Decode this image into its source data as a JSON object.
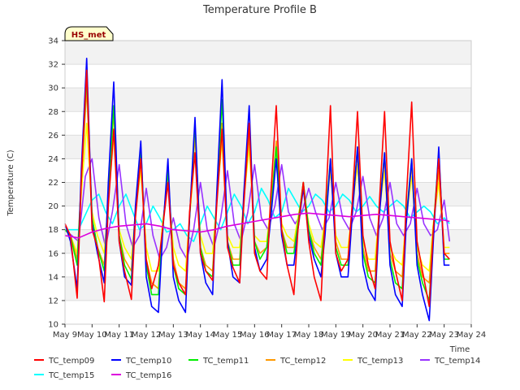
{
  "chart_data": {
    "type": "line",
    "title": "Temperature Profile B",
    "xlabel": "Time",
    "ylabel": "Temperature (C)",
    "ylim": [
      10,
      34
    ],
    "xlim": [
      9,
      24
    ],
    "x_ticks": [
      9,
      10,
      11,
      12,
      13,
      14,
      15,
      16,
      17,
      18,
      19,
      20,
      21,
      22,
      23,
      24
    ],
    "x_tick_labels": [
      "May 9",
      "May 10",
      "May 11",
      "May 12",
      "May 13",
      "May 14",
      "May 15",
      "May 16",
      "May 17",
      "May 18",
      "May 19",
      "May 20",
      "May 21",
      "May 22",
      "May 23",
      "May 24"
    ],
    "y_ticks": [
      10,
      12,
      14,
      16,
      18,
      20,
      22,
      24,
      26,
      28,
      30,
      32,
      34
    ],
    "y_tick_labels": [
      "10",
      "12",
      "14",
      "16",
      "18",
      "20",
      "22",
      "24",
      "26",
      "28",
      "30",
      "32",
      "34"
    ],
    "grid": true,
    "banded_background": true,
    "legend_position": "bottom",
    "annotation": "HS_met",
    "x_unit": "day of May",
    "series": [
      {
        "name": "TC_temp09",
        "color": "#ff0000",
        "x": [
          9.0,
          9.2,
          9.45,
          9.6,
          9.8,
          10.0,
          10.2,
          10.45,
          10.6,
          10.8,
          11.0,
          11.2,
          11.45,
          11.6,
          11.8,
          12.0,
          12.2,
          12.45,
          12.6,
          12.8,
          13.0,
          13.2,
          13.45,
          13.6,
          13.8,
          14.0,
          14.2,
          14.45,
          14.6,
          14.8,
          15.0,
          15.2,
          15.45,
          15.6,
          15.8,
          16.0,
          16.2,
          16.45,
          16.6,
          16.8,
          17.0,
          17.2,
          17.45,
          17.6,
          17.8,
          18.0,
          18.2,
          18.45,
          18.6,
          18.8,
          19.0,
          19.2,
          19.45,
          19.6,
          19.8,
          20.0,
          20.2,
          20.45,
          20.6,
          20.8,
          21.0,
          21.2,
          21.45,
          21.6,
          21.8,
          22.0,
          22.2,
          22.45,
          22.6,
          22.8,
          23.0,
          23.2
        ],
        "y": [
          18.5,
          17.5,
          12.2,
          22.0,
          31.5,
          18.0,
          16.5,
          11.9,
          20.0,
          26.5,
          17.0,
          14.5,
          12.1,
          19.0,
          24.0,
          15.5,
          13.0,
          15.0,
          18.0,
          22.0,
          15.0,
          13.5,
          12.5,
          19.5,
          24.5,
          16.0,
          14.5,
          13.7,
          20.0,
          26.5,
          16.5,
          14.8,
          13.5,
          20.0,
          27.0,
          16.0,
          14.5,
          13.8,
          21.0,
          28.5,
          18.0,
          15.0,
          12.5,
          18.0,
          22.0,
          17.0,
          14.0,
          12.0,
          19.0,
          28.5,
          16.0,
          14.5,
          15.5,
          20.0,
          28.0,
          17.5,
          15.0,
          13.0,
          20.0,
          28.0,
          17.0,
          14.5,
          12.0,
          20.5,
          28.8,
          17.0,
          14.5,
          11.5,
          18.0,
          24.0,
          16.0,
          15.5
        ]
      },
      {
        "name": "TC_temp10",
        "color": "#0000ff",
        "x": [
          9.0,
          9.2,
          9.45,
          9.6,
          9.8,
          10.0,
          10.2,
          10.45,
          10.6,
          10.8,
          11.0,
          11.2,
          11.45,
          11.6,
          11.8,
          12.0,
          12.2,
          12.45,
          12.6,
          12.8,
          13.0,
          13.2,
          13.45,
          13.6,
          13.8,
          14.0,
          14.2,
          14.45,
          14.6,
          14.8,
          15.0,
          15.2,
          15.45,
          15.6,
          15.8,
          16.0,
          16.2,
          16.45,
          16.6,
          16.8,
          17.0,
          17.2,
          17.45,
          17.6,
          17.8,
          18.0,
          18.2,
          18.45,
          18.6,
          18.8,
          19.0,
          19.2,
          19.45,
          19.6,
          19.8,
          20.0,
          20.2,
          20.45,
          20.6,
          20.8,
          21.0,
          21.2,
          21.45,
          21.6,
          21.8,
          22.0,
          22.2,
          22.45,
          22.6,
          22.8,
          23.0,
          23.2
        ],
        "y": [
          18.5,
          17.0,
          13.0,
          23.0,
          32.5,
          18.5,
          16.0,
          13.5,
          22.0,
          30.5,
          17.0,
          14.0,
          13.3,
          20.0,
          25.5,
          14.0,
          11.5,
          11.0,
          17.5,
          24.0,
          14.0,
          12.0,
          11.0,
          19.0,
          27.5,
          16.0,
          13.5,
          12.5,
          21.0,
          30.7,
          17.0,
          14.0,
          13.5,
          21.0,
          28.5,
          16.5,
          14.5,
          15.5,
          19.0,
          24.0,
          17.5,
          15.0,
          15.0,
          18.0,
          21.5,
          17.5,
          15.5,
          14.0,
          17.5,
          24.0,
          16.0,
          14.0,
          14.0,
          19.0,
          25.0,
          15.0,
          13.0,
          12.0,
          19.0,
          24.5,
          15.0,
          12.5,
          11.5,
          18.5,
          24.0,
          15.0,
          12.5,
          10.3,
          17.0,
          25.0,
          15.0,
          15.0
        ]
      },
      {
        "name": "TC_temp11",
        "color": "#00ee00",
        "x": [
          9.0,
          9.2,
          9.45,
          9.6,
          9.8,
          10.0,
          10.2,
          10.45,
          10.6,
          10.8,
          11.0,
          11.2,
          11.45,
          11.6,
          11.8,
          12.0,
          12.2,
          12.45,
          12.6,
          12.8,
          13.0,
          13.2,
          13.45,
          13.6,
          13.8,
          14.0,
          14.2,
          14.45,
          14.6,
          14.8,
          15.0,
          15.2,
          15.45,
          15.6,
          15.8,
          16.0,
          16.2,
          16.45,
          16.6,
          16.8,
          17.0,
          17.2,
          17.45,
          17.6,
          17.8,
          18.0,
          18.2,
          18.45,
          18.6,
          18.8,
          19.0,
          19.2,
          19.45,
          19.6,
          19.8,
          20.0,
          20.2,
          20.45,
          20.6,
          20.8,
          21.0,
          21.2,
          21.45,
          21.6,
          21.8,
          22.0,
          22.2,
          22.45,
          22.6,
          22.8,
          23.0,
          23.2
        ],
        "y": [
          18.0,
          17.5,
          15.0,
          22.0,
          31.0,
          19.0,
          16.5,
          14.5,
          21.0,
          28.5,
          17.5,
          15.0,
          13.8,
          19.5,
          25.0,
          15.0,
          12.5,
          12.5,
          18.0,
          23.0,
          15.0,
          13.0,
          12.5,
          19.0,
          27.0,
          16.5,
          14.5,
          14.0,
          20.5,
          29.0,
          17.0,
          15.0,
          15.0,
          20.5,
          27.0,
          17.0,
          15.5,
          16.5,
          19.5,
          25.0,
          18.0,
          16.0,
          16.0,
          18.5,
          22.0,
          18.0,
          16.0,
          15.0,
          18.5,
          24.0,
          16.5,
          15.0,
          15.0,
          19.5,
          25.0,
          16.0,
          14.0,
          13.5,
          19.5,
          24.5,
          15.5,
          13.5,
          13.0,
          19.0,
          24.0,
          15.5,
          13.5,
          12.0,
          18.0,
          24.5,
          15.5,
          15.5
        ]
      },
      {
        "name": "TC_temp12",
        "color": "#ff9900",
        "x": [
          9.0,
          9.2,
          9.45,
          9.6,
          9.8,
          10.0,
          10.2,
          10.45,
          10.6,
          10.8,
          11.0,
          11.2,
          11.45,
          11.6,
          11.8,
          12.0,
          12.2,
          12.45,
          12.6,
          12.8,
          13.0,
          13.2,
          13.45,
          13.6,
          13.8,
          14.0,
          14.2,
          14.45,
          14.6,
          14.8,
          15.0,
          15.2,
          15.45,
          15.6,
          15.8,
          16.0,
          16.2,
          16.45,
          16.6,
          16.8,
          17.0,
          17.2,
          17.45,
          17.6,
          17.8,
          18.0,
          18.2,
          18.45,
          18.6,
          18.8,
          19.0,
          19.2,
          19.45,
          19.6,
          19.8,
          20.0,
          20.2,
          20.45,
          20.6,
          20.8,
          21.0,
          21.2,
          21.45,
          21.6,
          21.8,
          22.0,
          22.2,
          22.45,
          22.6,
          22.8,
          23.0,
          23.2
        ],
        "y": [
          18.0,
          17.5,
          15.5,
          22.0,
          30.0,
          19.0,
          16.5,
          15.0,
          21.0,
          28.0,
          17.5,
          15.5,
          14.5,
          19.5,
          24.5,
          15.5,
          13.5,
          13.0,
          18.0,
          23.0,
          15.5,
          13.5,
          13.0,
          19.0,
          26.0,
          16.5,
          15.0,
          14.5,
          20.5,
          27.0,
          17.0,
          15.5,
          15.5,
          20.5,
          26.0,
          17.0,
          16.0,
          16.5,
          20.0,
          25.5,
          18.0,
          16.5,
          16.5,
          18.5,
          22.0,
          18.0,
          16.5,
          15.5,
          18.5,
          23.5,
          17.0,
          15.5,
          15.5,
          19.5,
          24.5,
          16.5,
          14.5,
          14.5,
          19.5,
          24.0,
          16.0,
          14.5,
          14.0,
          19.0,
          23.5,
          16.0,
          14.0,
          13.5,
          18.0,
          23.0,
          16.0,
          16.0
        ]
      },
      {
        "name": "TC_temp13",
        "color": "#ffff00",
        "x": [
          9.0,
          9.2,
          9.45,
          9.6,
          9.8,
          10.0,
          10.2,
          10.45,
          10.6,
          10.8,
          11.0,
          11.2,
          11.45,
          11.6,
          11.8,
          12.0,
          12.2,
          12.45,
          12.6,
          12.8,
          13.0,
          13.2,
          13.45,
          13.6,
          13.8,
          14.0,
          14.2,
          14.45,
          14.6,
          14.8,
          15.0,
          15.2,
          15.45,
          15.6,
          15.8,
          16.0,
          16.2,
          16.45,
          16.6,
          16.8,
          17.0,
          17.2,
          17.45,
          17.6,
          17.8,
          18.0,
          18.2,
          18.45,
          18.6,
          18.8,
          19.0,
          19.2,
          19.45,
          19.6,
          19.8,
          20.0,
          20.2,
          20.45,
          20.6,
          20.8,
          21.0,
          21.2,
          21.45,
          21.6,
          21.8,
          22.0,
          22.2,
          22.45,
          22.6,
          22.8,
          23.0,
          23.2
        ],
        "y": [
          18.0,
          17.5,
          16.0,
          21.0,
          27.0,
          19.5,
          17.5,
          16.0,
          20.5,
          26.0,
          18.0,
          16.5,
          15.5,
          19.5,
          23.0,
          16.5,
          14.5,
          14.5,
          18.5,
          22.0,
          16.5,
          15.0,
          14.5,
          19.0,
          24.5,
          17.5,
          16.0,
          16.0,
          20.5,
          25.5,
          17.5,
          16.5,
          16.5,
          20.5,
          25.0,
          17.5,
          17.0,
          17.0,
          20.0,
          25.0,
          18.5,
          17.5,
          17.0,
          19.0,
          21.5,
          18.5,
          17.0,
          16.5,
          19.0,
          23.0,
          17.5,
          16.5,
          16.5,
          19.5,
          23.5,
          17.0,
          15.5,
          15.5,
          19.5,
          23.0,
          16.5,
          15.5,
          15.0,
          19.0,
          22.5,
          16.5,
          15.0,
          14.5,
          18.5,
          22.0,
          16.5,
          16.5
        ]
      },
      {
        "name": "TC_temp14",
        "color": "#9933ff",
        "x": [
          9.0,
          9.25,
          9.5,
          9.75,
          10.0,
          10.25,
          10.5,
          10.75,
          11.0,
          11.25,
          11.5,
          11.75,
          12.0,
          12.25,
          12.5,
          12.75,
          13.0,
          13.25,
          13.5,
          13.75,
          14.0,
          14.25,
          14.5,
          14.75,
          15.0,
          15.25,
          15.5,
          15.75,
          16.0,
          16.25,
          16.5,
          16.75,
          17.0,
          17.25,
          17.5,
          17.75,
          18.0,
          18.25,
          18.5,
          18.75,
          19.0,
          19.25,
          19.5,
          19.75,
          20.0,
          20.25,
          20.5,
          20.75,
          21.0,
          21.25,
          21.5,
          21.75,
          22.0,
          22.25,
          22.5,
          22.75,
          23.0,
          23.2
        ],
        "y": [
          18.0,
          17.5,
          17.0,
          22.5,
          24.0,
          19.0,
          16.5,
          19.5,
          23.5,
          18.5,
          16.5,
          17.5,
          21.5,
          17.5,
          15.5,
          16.5,
          19.0,
          16.5,
          15.5,
          18.0,
          22.0,
          18.0,
          16.5,
          19.0,
          23.0,
          18.5,
          17.0,
          19.5,
          23.5,
          19.0,
          18.0,
          20.0,
          23.5,
          19.5,
          18.5,
          19.5,
          21.5,
          19.5,
          18.0,
          19.0,
          22.0,
          19.0,
          18.0,
          19.5,
          22.5,
          19.0,
          17.5,
          19.0,
          22.0,
          18.5,
          17.5,
          18.5,
          21.5,
          18.5,
          17.5,
          18.0,
          20.5,
          17.0
        ]
      },
      {
        "name": "TC_temp15",
        "color": "#00ffff",
        "x": [
          9.0,
          9.5,
          10.0,
          10.25,
          10.5,
          10.75,
          11.0,
          11.25,
          11.5,
          11.75,
          12.0,
          12.25,
          12.5,
          12.75,
          13.0,
          13.25,
          13.5,
          13.75,
          14.0,
          14.25,
          14.5,
          14.75,
          15.0,
          15.25,
          15.5,
          15.75,
          16.0,
          16.25,
          16.5,
          16.75,
          17.0,
          17.25,
          17.5,
          17.75,
          18.0,
          18.25,
          18.5,
          18.75,
          19.0,
          19.25,
          19.5,
          19.75,
          20.0,
          20.25,
          20.5,
          20.75,
          21.0,
          21.25,
          21.5,
          21.75,
          22.0,
          22.25,
          22.5,
          22.75,
          23.0,
          23.2
        ],
        "y": [
          18.0,
          18.0,
          20.5,
          21.0,
          19.5,
          18.5,
          20.0,
          21.0,
          19.5,
          18.0,
          18.5,
          20.0,
          19.0,
          17.8,
          18.0,
          18.5,
          17.5,
          17.0,
          18.5,
          20.0,
          19.0,
          18.0,
          19.5,
          21.0,
          20.0,
          18.5,
          19.5,
          21.5,
          20.5,
          19.0,
          19.5,
          21.5,
          20.5,
          19.5,
          20.0,
          21.0,
          20.5,
          19.5,
          20.0,
          21.0,
          20.5,
          19.5,
          20.0,
          20.8,
          20.0,
          19.5,
          20.0,
          20.5,
          20.0,
          19.0,
          19.5,
          20.0,
          19.5,
          18.5,
          19.0,
          18.5
        ]
      },
      {
        "name": "TC_temp16",
        "color": "#dd00dd",
        "x": [
          9.0,
          9.5,
          10.0,
          10.5,
          11.0,
          11.5,
          12.0,
          12.5,
          13.0,
          13.5,
          14.0,
          14.5,
          15.0,
          15.5,
          16.0,
          16.5,
          17.0,
          17.5,
          18.0,
          18.5,
          19.0,
          19.5,
          20.0,
          20.5,
          21.0,
          21.5,
          22.0,
          22.5,
          23.0,
          23.2
        ],
        "y": [
          17.5,
          17.3,
          17.8,
          18.1,
          18.3,
          18.4,
          18.5,
          18.3,
          18.0,
          17.9,
          17.8,
          18.0,
          18.3,
          18.5,
          18.7,
          18.9,
          19.1,
          19.3,
          19.4,
          19.3,
          19.2,
          19.1,
          19.2,
          19.3,
          19.2,
          19.1,
          19.0,
          18.9,
          18.8,
          18.7
        ]
      }
    ]
  }
}
